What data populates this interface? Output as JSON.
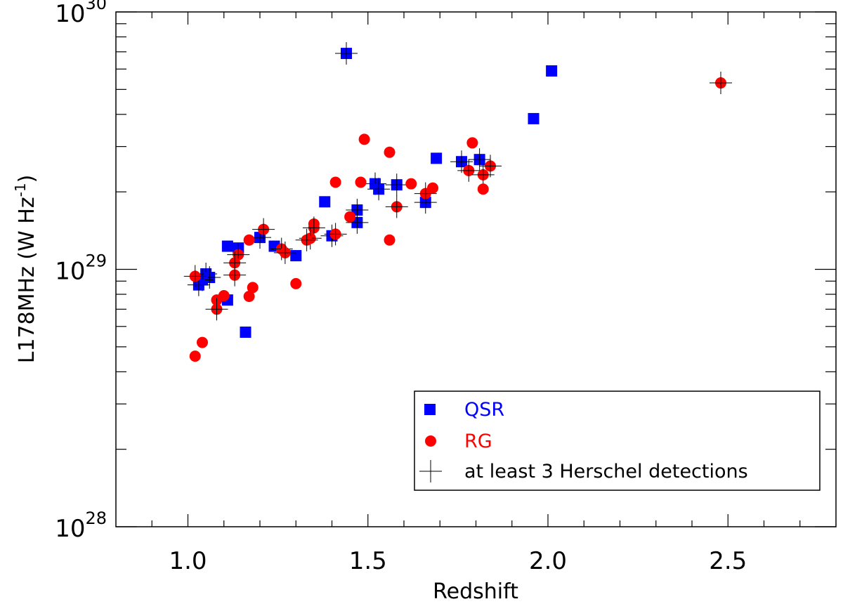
{
  "chart_data": {
    "type": "scatter",
    "title": "",
    "xlabel": "Redshift",
    "ylabel": "L178MHz (W Hz^-1)",
    "ylabel_parts": {
      "main": "L178MHz (W Hz",
      "sup": "-1",
      "close": ")"
    },
    "xscale": "linear",
    "yscale": "log",
    "xlim": [
      0.8,
      2.8
    ],
    "ylim": [
      1e+28,
      1e+30
    ],
    "xticks": [
      {
        "value": 1.0,
        "label": "1.0"
      },
      {
        "value": 1.5,
        "label": "1.5"
      },
      {
        "value": 2.0,
        "label": "2.0"
      },
      {
        "value": 2.5,
        "label": "2.5"
      }
    ],
    "yticks": [
      {
        "value": 1e+28,
        "base": "10",
        "exp": "28"
      },
      {
        "value": 1e+29,
        "base": "10",
        "exp": "29"
      },
      {
        "value": 1e+30,
        "base": "10",
        "exp": "30"
      }
    ],
    "legend_position": "bottom-right",
    "colors": {
      "qsr": "#0000ff",
      "rg": "#ff0000",
      "cross": "#000000"
    },
    "series": [
      {
        "name": "QSR",
        "marker": "square",
        "color": "#0000ff",
        "points": [
          [
            1.44,
            6.9e+29,
            1
          ],
          [
            2.01,
            5.9e+29,
            0
          ],
          [
            1.96,
            3.85e+29,
            0
          ],
          [
            1.69,
            2.7e+29,
            0
          ],
          [
            1.76,
            2.62e+29,
            1
          ],
          [
            1.81,
            2.67e+29,
            1
          ],
          [
            1.52,
            2.15e+29,
            1
          ],
          [
            1.53,
            2.05e+29,
            1
          ],
          [
            1.58,
            2.13e+29,
            1
          ],
          [
            1.38,
            1.83e+29,
            0
          ],
          [
            1.66,
            1.82e+29,
            1
          ],
          [
            1.47,
            1.7e+29,
            1
          ],
          [
            1.47,
            1.52e+29,
            1
          ],
          [
            1.4,
            1.35e+29,
            1
          ],
          [
            1.2,
            1.33e+29,
            1
          ],
          [
            1.11,
            1.23e+29,
            0
          ],
          [
            1.14,
            1.21e+29,
            0
          ],
          [
            1.24,
            1.23e+29,
            0
          ],
          [
            1.3,
            1.13e+29,
            0
          ],
          [
            1.05,
            9.6e+28,
            1
          ],
          [
            1.06,
            9.3e+28,
            1
          ],
          [
            1.04,
            9.1e+28,
            1
          ],
          [
            1.03,
            8.7e+28,
            1
          ],
          [
            1.11,
            7.6e+28,
            0
          ],
          [
            1.16,
            5.7e+28,
            0
          ]
        ]
      },
      {
        "name": "RG",
        "marker": "circle",
        "color": "#ff0000",
        "points": [
          [
            2.48,
            5.3e+29,
            1
          ],
          [
            1.49,
            3.2e+29,
            0
          ],
          [
            1.79,
            3.1e+29,
            0
          ],
          [
            1.56,
            2.85e+29,
            0
          ],
          [
            1.84,
            2.52e+29,
            1
          ],
          [
            1.78,
            2.42e+29,
            1
          ],
          [
            1.82,
            2.33e+29,
            1
          ],
          [
            1.41,
            2.18e+29,
            0
          ],
          [
            1.48,
            2.18e+29,
            0
          ],
          [
            1.62,
            2.15e+29,
            0
          ],
          [
            1.68,
            2.07e+29,
            0
          ],
          [
            1.82,
            2.05e+29,
            0
          ],
          [
            1.66,
            1.97e+29,
            1
          ],
          [
            1.58,
            1.75e+29,
            1
          ],
          [
            1.45,
            1.6e+29,
            0
          ],
          [
            1.35,
            1.5e+29,
            0
          ],
          [
            1.35,
            1.45e+29,
            1
          ],
          [
            1.21,
            1.43e+29,
            1
          ],
          [
            1.41,
            1.37e+29,
            1
          ],
          [
            1.34,
            1.32e+29,
            1
          ],
          [
            1.33,
            1.3e+29,
            1
          ],
          [
            1.17,
            1.3e+29,
            0
          ],
          [
            1.56,
            1.3e+29,
            0
          ],
          [
            1.26,
            1.2e+29,
            1
          ],
          [
            1.27,
            1.16e+29,
            1
          ],
          [
            1.14,
            1.14e+29,
            1
          ],
          [
            1.13,
            1.06e+29,
            1
          ],
          [
            1.13,
            9.5e+28,
            1
          ],
          [
            1.02,
            9.4e+28,
            1
          ],
          [
            1.3,
            8.8e+28,
            0
          ],
          [
            1.18,
            8.5e+28,
            0
          ],
          [
            1.1,
            7.9e+28,
            0
          ],
          [
            1.17,
            7.85e+28,
            0
          ],
          [
            1.08,
            7.6e+28,
            0
          ],
          [
            1.08,
            7e+28,
            1
          ],
          [
            1.04,
            5.2e+28,
            0
          ],
          [
            1.02,
            4.6e+28,
            0
          ]
        ]
      }
    ],
    "legend": [
      {
        "label": "QSR",
        "marker": "square",
        "color": "#0000ff"
      },
      {
        "label": "RG",
        "marker": "circle",
        "color": "#ff0000"
      },
      {
        "label": "at least 3 Herschel detections",
        "marker": "cross",
        "color": "#000000"
      }
    ]
  }
}
